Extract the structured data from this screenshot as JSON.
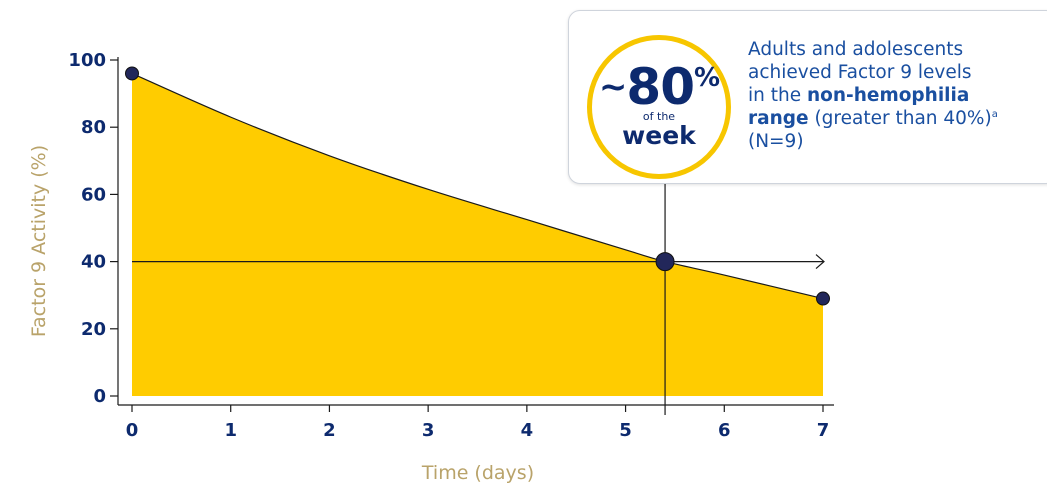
{
  "chart_data": {
    "type": "area",
    "xlabel": "Time (days)",
    "ylabel": "Factor 9 Activity (%)",
    "xlim": [
      0,
      7
    ],
    "ylim": [
      0,
      100
    ],
    "x_ticks": [
      0,
      1,
      2,
      3,
      4,
      5,
      6,
      7
    ],
    "y_ticks": [
      0,
      20,
      40,
      60,
      80,
      100
    ],
    "grid": false,
    "fill_color": "#FFCC00",
    "marker_color": "#22275a",
    "series": [
      {
        "x": [
          0,
          1,
          2,
          3,
          4,
          5,
          5.4,
          6,
          7
        ],
        "y": [
          96,
          83,
          71.5,
          61.5,
          52.5,
          43.5,
          40,
          36,
          29
        ]
      }
    ],
    "markers": [
      {
        "x": 0,
        "y": 96
      },
      {
        "x": 5.4,
        "y": 40
      },
      {
        "x": 7,
        "y": 29
      }
    ],
    "reference_lines": {
      "horizontal_y": 40,
      "vertical_x": 5.4
    }
  },
  "callout": {
    "badge_tilde": "~",
    "badge_value": "80",
    "badge_percent": "%",
    "badge_of_the": "of the",
    "badge_week": "week",
    "line1": "Adults and adolescents",
    "line2": "achieved Factor 9 levels",
    "line3_pre": "in the ",
    "line3_bold": "non-hemophilia",
    "line4_bold": "range",
    "line4_rest": " (greater than 40%)",
    "footnote_mark": "a",
    "line5": "(N=9)"
  }
}
